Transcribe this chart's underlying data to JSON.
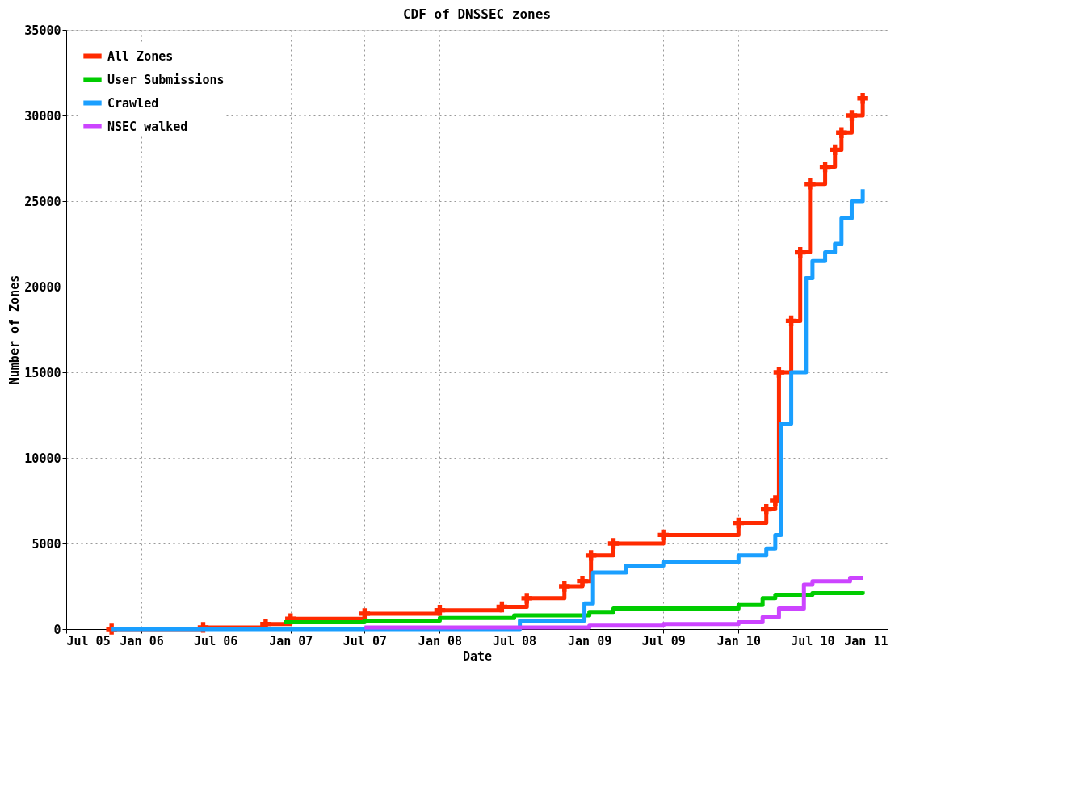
{
  "chart_data": {
    "type": "step",
    "title": "CDF of DNSSEC zones",
    "xlabel": "Date",
    "ylabel": "Number of Zones",
    "xlim": [
      "2005-07-01",
      "2011-01-01"
    ],
    "xticks": [
      {
        "value": "2005-07-01",
        "label": "Jul 05"
      },
      {
        "value": "2006-01-01",
        "label": "Jan 06"
      },
      {
        "value": "2006-07-01",
        "label": "Jul 06"
      },
      {
        "value": "2007-01-01",
        "label": "Jan 07"
      },
      {
        "value": "2007-07-01",
        "label": "Jul 07"
      },
      {
        "value": "2008-01-01",
        "label": "Jan 08"
      },
      {
        "value": "2008-07-01",
        "label": "Jul 08"
      },
      {
        "value": "2009-01-01",
        "label": "Jan 09"
      },
      {
        "value": "2009-07-01",
        "label": "Jul 09"
      },
      {
        "value": "2010-01-01",
        "label": "Jan 10"
      },
      {
        "value": "2010-07-01",
        "label": "Jul 10"
      },
      {
        "value": "2011-01-01",
        "label": "Jan 11"
      }
    ],
    "ylim": [
      0,
      35000
    ],
    "yticks": [
      0,
      5000,
      10000,
      15000,
      20000,
      25000,
      30000,
      35000
    ],
    "grid": true,
    "legend": "top left",
    "line_style": "solid",
    "series": [
      {
        "name": "All Zones",
        "color": "#ff2a00",
        "marker": "cross",
        "x": [
          "2005-10-20",
          "2006-06-01",
          "2006-11-01",
          "2007-01-01",
          "2007-07-01",
          "2008-01-01",
          "2008-06-01",
          "2008-08-01",
          "2008-11-01",
          "2008-12-15",
          "2009-01-05",
          "2009-03-01",
          "2009-07-01",
          "2010-01-01",
          "2010-03-10",
          "2010-04-01",
          "2010-04-10",
          "2010-05-10",
          "2010-06-01",
          "2010-06-25",
          "2010-08-01",
          "2010-08-25",
          "2010-09-10",
          "2010-10-05",
          "2010-11-01"
        ],
        "values": [
          0,
          100,
          300,
          600,
          900,
          1100,
          1300,
          1800,
          2500,
          2800,
          4300,
          5000,
          5500,
          6200,
          7000,
          7500,
          15000,
          18000,
          22000,
          26000,
          27000,
          28000,
          29000,
          30000,
          31000
        ]
      },
      {
        "name": "User Submissions",
        "color": "#00cc00",
        "x": [
          "2006-12-15",
          "2007-07-01",
          "2008-01-01",
          "2008-07-01",
          "2009-01-01",
          "2009-03-01",
          "2010-01-01",
          "2010-03-01",
          "2010-04-01",
          "2010-07-01",
          "2010-11-01"
        ],
        "values": [
          400,
          500,
          650,
          800,
          1000,
          1200,
          1400,
          1800,
          2000,
          2100,
          2200
        ]
      },
      {
        "name": "Crawled",
        "color": "#1a9fff",
        "x": [
          "2005-10-20",
          "2008-06-15",
          "2008-07-15",
          "2008-12-20",
          "2009-01-10",
          "2009-04-01",
          "2009-07-01",
          "2010-01-01",
          "2010-03-10",
          "2010-04-01",
          "2010-04-15",
          "2010-05-10",
          "2010-06-15",
          "2010-07-01",
          "2010-08-01",
          "2010-08-25",
          "2010-09-10",
          "2010-10-05",
          "2010-11-01"
        ],
        "values": [
          0,
          0,
          500,
          1500,
          3300,
          3700,
          3900,
          4300,
          4700,
          5500,
          12000,
          15000,
          20500,
          21500,
          22000,
          22500,
          24000,
          25000,
          25700
        ]
      },
      {
        "name": "NSEC walked",
        "color": "#cc44ff",
        "x": [
          "2007-07-01",
          "2009-01-01",
          "2009-07-01",
          "2010-01-01",
          "2010-03-01",
          "2010-04-10",
          "2010-06-10",
          "2010-07-01",
          "2010-10-01",
          "2010-11-01"
        ],
        "values": [
          100,
          200,
          300,
          400,
          700,
          1200,
          2600,
          2800,
          3000,
          3000
        ]
      }
    ]
  }
}
